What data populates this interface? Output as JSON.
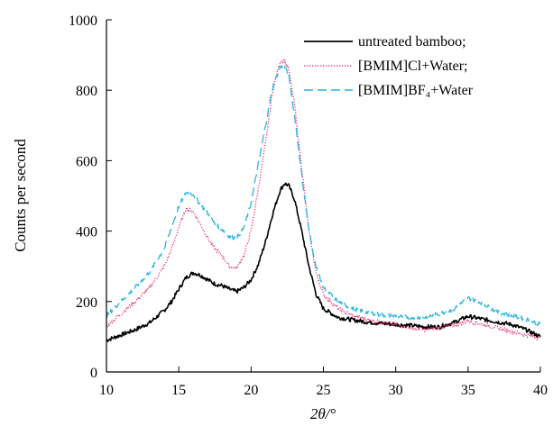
{
  "chart_data": {
    "type": "line",
    "title": "",
    "xlabel": "2θ/°",
    "ylabel": "Counts per second",
    "xlim": [
      10,
      40
    ],
    "ylim": [
      0,
      1000
    ],
    "xticks": [
      10,
      15,
      20,
      25,
      30,
      35,
      40
    ],
    "yticks": [
      0,
      200,
      400,
      600,
      800,
      1000
    ],
    "grid": false,
    "legend_position": "top-right",
    "series": [
      {
        "name": "untreated bamboo;",
        "color": "#000000",
        "dash": "solid",
        "x": [
          10,
          11,
          12,
          13,
          14,
          14.5,
          15,
          15.5,
          16,
          16.5,
          17,
          17.5,
          18,
          18.5,
          19,
          19.5,
          20,
          20.5,
          21,
          21.5,
          22,
          22.3,
          22.6,
          23,
          23.5,
          24,
          24.5,
          25,
          26,
          27,
          28,
          29,
          30,
          31,
          32,
          33,
          34,
          35,
          36,
          37,
          38,
          39,
          40
        ],
        "y": [
          90,
          105,
          120,
          140,
          175,
          200,
          235,
          268,
          282,
          275,
          262,
          250,
          245,
          235,
          228,
          240,
          262,
          305,
          370,
          450,
          515,
          535,
          530,
          490,
          400,
          300,
          220,
          180,
          155,
          148,
          142,
          138,
          135,
          132,
          128,
          128,
          140,
          158,
          150,
          142,
          135,
          120,
          100
        ]
      },
      {
        "name": "[BMIM]Cl+Water;",
        "color": "#e8336e",
        "dash": "dotted",
        "x": [
          10,
          11,
          12,
          13,
          14,
          14.5,
          15,
          15.5,
          16,
          16.5,
          17,
          17.5,
          18,
          18.5,
          19,
          19.5,
          20,
          20.5,
          21,
          21.5,
          22,
          22.3,
          22.6,
          23,
          23.5,
          24,
          24.5,
          25,
          26,
          27,
          28,
          29,
          30,
          31,
          32,
          33,
          34,
          35,
          36,
          37,
          38,
          39,
          40
        ],
        "y": [
          130,
          165,
          200,
          240,
          300,
          350,
          410,
          465,
          455,
          420,
          380,
          350,
          330,
          300,
          295,
          330,
          400,
          520,
          650,
          800,
          880,
          885,
          860,
          760,
          580,
          400,
          280,
          220,
          180,
          160,
          150,
          140,
          135,
          125,
          120,
          125,
          132,
          145,
          135,
          125,
          115,
          105,
          95
        ]
      },
      {
        "name": "[BMIM]BF₄+Water",
        "color": "#29b2e3",
        "dash": "dashed",
        "x": [
          10,
          11,
          12,
          13,
          14,
          14.5,
          15,
          15.5,
          16,
          16.5,
          17,
          17.5,
          18,
          18.5,
          19,
          19.5,
          20,
          20.5,
          21,
          21.5,
          22,
          22.3,
          22.6,
          23,
          23.5,
          24,
          24.5,
          25,
          26,
          27,
          28,
          29,
          30,
          31,
          32,
          33,
          34,
          35,
          36,
          37,
          38,
          39,
          40
        ],
        "y": [
          160,
          200,
          240,
          285,
          350,
          410,
          470,
          510,
          505,
          475,
          450,
          420,
          405,
          385,
          380,
          410,
          480,
          590,
          700,
          810,
          865,
          870,
          840,
          730,
          560,
          400,
          300,
          240,
          200,
          180,
          170,
          162,
          158,
          155,
          155,
          165,
          178,
          210,
          195,
          170,
          160,
          150,
          135
        ]
      }
    ]
  }
}
